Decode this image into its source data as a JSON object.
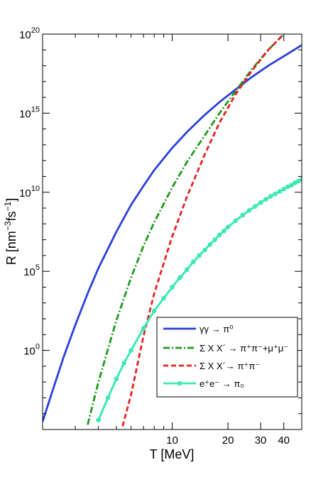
{
  "chart_data": {
    "type": "line",
    "title": "",
    "xlabel": "T [MeV]",
    "ylabel_main": "R [nm",
    "ylabel_sup1": "−3",
    "ylabel_mid": "fs",
    "ylabel_sup2": "−1",
    "ylabel_end": "]",
    "x_scale": "log",
    "y_scale": "log",
    "xlim": [
      2,
      50
    ],
    "ylim_log10": [
      -5,
      20
    ],
    "grid": false,
    "legend_position": "lower-right",
    "x_ticks": [
      {
        "value": 10,
        "label": "10"
      },
      {
        "value": 20,
        "label": "20"
      },
      {
        "value": 30,
        "label": "30"
      },
      {
        "value": 40,
        "label": "40"
      }
    ],
    "y_ticks": [
      {
        "exp": 0,
        "base": "10",
        "sup": "0"
      },
      {
        "exp": 5,
        "base": "10",
        "sup": "5"
      },
      {
        "exp": 10,
        "base": "10",
        "sup": "10"
      },
      {
        "exp": 15,
        "base": "10",
        "sup": "15"
      },
      {
        "exp": 20,
        "base": "10",
        "sup": "20"
      }
    ],
    "series": [
      {
        "name": "γγ → π⁰",
        "color": "#2a3fdb",
        "style": "solid",
        "x": [
          2.0,
          2.3,
          2.6,
          3.0,
          3.5,
          4.0,
          5.0,
          6.0,
          7.0,
          8.0,
          10.0,
          12.0,
          15.0,
          18.0,
          22.0,
          27.0,
          33.0,
          40.0,
          50.0
        ],
        "y_log10": [
          -4.5,
          -2.3,
          -0.4,
          1.6,
          3.6,
          5.2,
          7.5,
          9.2,
          10.4,
          11.4,
          12.8,
          13.8,
          14.9,
          15.7,
          16.5,
          17.3,
          18.0,
          18.6,
          19.3
        ]
      },
      {
        "name": "Σ X X´ → π⁺π⁻+μ⁺μ⁻",
        "color": "#1e9a1e",
        "style": "dashdot",
        "x": [
          3.5,
          4.0,
          5.0,
          6.0,
          7.0,
          8.0,
          10.0,
          12.0,
          15.0,
          18.0,
          22.0,
          27.0,
          33.0,
          40.0,
          50.0
        ],
        "y_log10": [
          -4.7,
          -2.0,
          1.9,
          4.6,
          6.6,
          8.1,
          10.3,
          11.9,
          13.6,
          15.0,
          16.4,
          17.8,
          19.0,
          20.0,
          21.2
        ]
      },
      {
        "name": "Σ X X´→ π⁺π⁻",
        "color": "#e62020",
        "style": "dashed",
        "x": [
          5.4,
          6.0,
          7.0,
          8.0,
          10.0,
          12.0,
          15.0,
          18.0,
          22.0,
          27.0,
          33.0,
          40.0,
          50.0
        ],
        "y_log10": [
          -4.8,
          -2.8,
          0.9,
          3.6,
          7.2,
          9.7,
          12.4,
          14.4,
          16.2,
          17.7,
          19.0,
          20.0,
          21.2
        ]
      },
      {
        "name": "e⁺e⁻ → π₀",
        "color": "#3de8b4",
        "style": "solid-markers",
        "x": [
          4.0,
          4.5,
          5.0,
          5.5,
          6.0,
          7.0,
          8.0,
          9.0,
          10.0,
          11.0,
          12.0,
          13.0,
          14.0,
          15.0,
          16.0,
          17.0,
          18.0,
          19.0,
          20.0,
          22.0,
          24.0,
          26.0,
          28.0,
          30.0,
          32.0,
          34.0,
          36.0,
          38.0,
          40.0,
          42.0,
          44.0,
          46.0,
          48.0,
          50.0
        ],
        "y_log10": [
          -4.4,
          -3.0,
          -1.8,
          -0.8,
          0.0,
          1.4,
          2.5,
          3.3,
          4.0,
          4.6,
          5.1,
          5.6,
          6.0,
          6.35,
          6.7,
          7.0,
          7.3,
          7.55,
          7.8,
          8.2,
          8.55,
          8.85,
          9.1,
          9.35,
          9.55,
          9.75,
          9.9,
          10.05,
          10.2,
          10.35,
          10.45,
          10.6,
          10.7,
          10.8
        ]
      }
    ]
  }
}
